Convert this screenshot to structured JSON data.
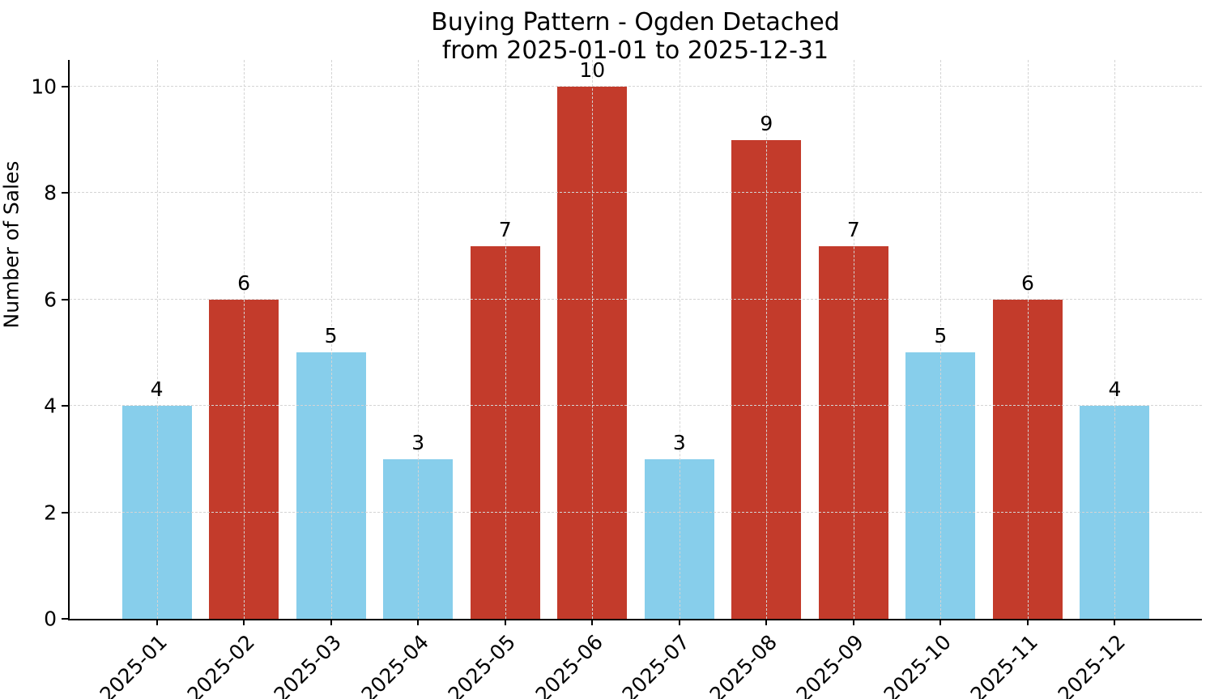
{
  "chart_data": {
    "type": "bar",
    "title": "Buying Pattern - Ogden Detached",
    "subtitle": "from 2025-01-01 to 2025-12-31",
    "categories": [
      "2025-01",
      "2025-02",
      "2025-03",
      "2025-04",
      "2025-05",
      "2025-06",
      "2025-07",
      "2025-08",
      "2025-09",
      "2025-10",
      "2025-11",
      "2025-12"
    ],
    "values": [
      4,
      6,
      5,
      3,
      7,
      10,
      3,
      9,
      7,
      5,
      6,
      4
    ],
    "value_labels": [
      "4",
      "6",
      "5",
      "3",
      "7",
      "10",
      "3",
      "9",
      "7",
      "5",
      "6",
      "4"
    ],
    "bar_colors": [
      "#87ceeb",
      "#c33b2b",
      "#87ceeb",
      "#87ceeb",
      "#c33b2b",
      "#c33b2b",
      "#87ceeb",
      "#c33b2b",
      "#c33b2b",
      "#87ceeb",
      "#c33b2b",
      "#87ceeb"
    ],
    "xlabel": "",
    "ylabel": "Number of Sales",
    "ylim": [
      0,
      10.5
    ],
    "yticks": [
      0,
      2,
      4,
      6,
      8,
      10
    ],
    "grid": "dashed-both-axes",
    "legend": "none",
    "colors": {
      "bar_blue": "#87ceeb",
      "bar_red": "#c33b2b",
      "grid": "#d4d4d4",
      "axis": "#000000",
      "text": "#000000",
      "background": "#ffffff"
    },
    "layout": {
      "bar_width_fraction": 0.8,
      "x_label_rotation_deg": 45
    }
  }
}
